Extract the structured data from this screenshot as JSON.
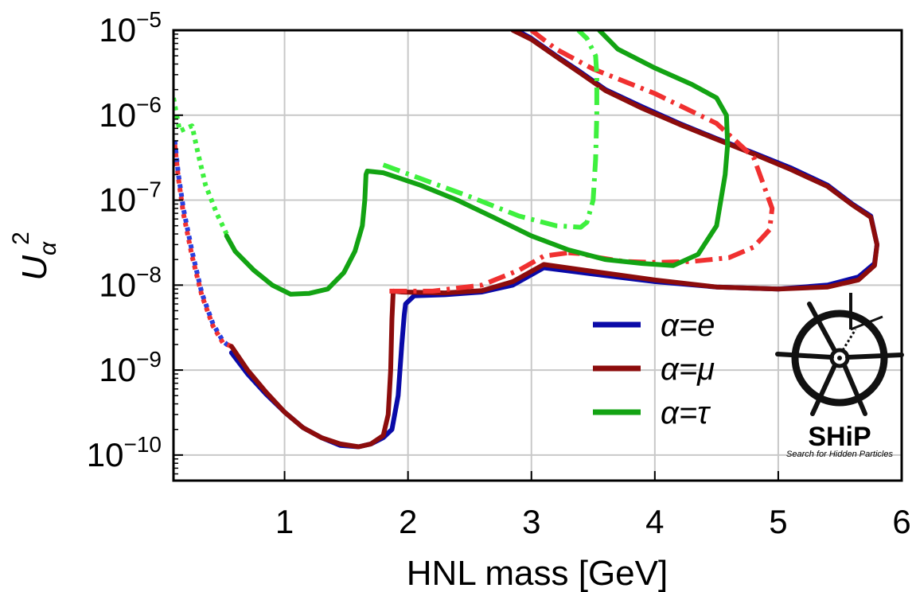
{
  "chart_data": {
    "type": "line",
    "xlabel": "HNL mass [GeV]",
    "ylabel": "U",
    "ylabel_sub": "α",
    "ylabel_sup": "2",
    "x_scale": "linear",
    "y_scale": "log",
    "xlim": [
      0.1,
      6.0
    ],
    "ylim": [
      5e-11,
      1e-05
    ],
    "x_ticks": [
      {
        "value": 1,
        "label": "1"
      },
      {
        "value": 2,
        "label": "2"
      },
      {
        "value": 3,
        "label": "3"
      },
      {
        "value": 4,
        "label": "4"
      },
      {
        "value": 5,
        "label": "5"
      },
      {
        "value": 6,
        "label": "6"
      }
    ],
    "y_ticks": [
      {
        "value": 1e-10,
        "base": "10",
        "exp": "−10"
      },
      {
        "value": 1e-09,
        "base": "10",
        "exp": "−9"
      },
      {
        "value": 1e-08,
        "base": "10",
        "exp": "−8"
      },
      {
        "value": 1e-07,
        "base": "10",
        "exp": "−7"
      },
      {
        "value": 1e-06,
        "base": "10",
        "exp": "−6"
      },
      {
        "value": 1e-05,
        "base": "10",
        "exp": "−5"
      }
    ],
    "grid": true,
    "legend_position": "bottom-right",
    "legend": [
      {
        "label": "α=e",
        "color": "#0a0aa8"
      },
      {
        "label": "α=μ",
        "color": "#8c0c0c"
      },
      {
        "label": "α=τ",
        "color": "#13a313"
      }
    ],
    "series": [
      {
        "key": "e_dotted",
        "color": "#2840e0",
        "style": "dotted",
        "x": [
          0.11,
          0.14,
          0.18,
          0.25,
          0.33,
          0.42,
          0.5,
          0.57
        ],
        "y": [
          5e-07,
          2e-07,
          8e-08,
          2.5e-08,
          8e-09,
          3.5e-09,
          2.2e-09,
          1.8e-09
        ]
      },
      {
        "key": "mu_dotted",
        "color": "#f03030",
        "style": "dotted",
        "x": [
          0.11,
          0.14,
          0.18,
          0.25,
          0.33,
          0.42,
          0.5,
          0.57
        ],
        "y": [
          4.5e-07,
          1.8e-07,
          7e-08,
          2.2e-08,
          7.5e-09,
          3.3e-09,
          2.1e-09,
          1.9e-09
        ]
      },
      {
        "key": "e_solid",
        "color": "#0a0aa8",
        "style": "solid",
        "x": [
          0.57,
          0.7,
          0.85,
          1.0,
          1.15,
          1.3,
          1.45,
          1.6,
          1.7,
          1.8,
          1.87,
          1.92,
          1.95,
          1.97,
          1.98,
          2.05,
          2.3,
          2.6,
          2.85,
          3.1,
          3.5,
          4.0,
          4.5,
          5.0,
          5.4,
          5.65,
          5.78,
          5.8
        ],
        "y": [
          1.6e-09,
          9e-10,
          5.2e-10,
          3.2e-10,
          2.1e-10,
          1.6e-10,
          1.3e-10,
          1.25e-10,
          1.35e-10,
          1.6e-10,
          2e-10,
          5e-10,
          2e-09,
          4.5e-09,
          6e-09,
          7.5e-09,
          7.7e-09,
          8.3e-09,
          1e-08,
          1.6e-08,
          1.35e-08,
          1.1e-08,
          9.5e-09,
          9e-09,
          1e-08,
          1.25e-08,
          1.8e-08,
          3e-08
        ]
      },
      {
        "key": "mu_solid",
        "color": "#8c0c0c",
        "style": "solid",
        "x": [
          0.57,
          0.7,
          0.85,
          1.0,
          1.15,
          1.3,
          1.45,
          1.6,
          1.7,
          1.8,
          1.84,
          1.86,
          1.87,
          1.88,
          1.95,
          2.3,
          2.6,
          2.85,
          3.1,
          3.5,
          4.0,
          4.5,
          5.0,
          5.4,
          5.65,
          5.78,
          5.8
        ],
        "y": [
          1.9e-09,
          1e-09,
          5.5e-10,
          3.2e-10,
          2.1e-10,
          1.6e-10,
          1.35e-10,
          1.25e-10,
          1.35e-10,
          1.7e-10,
          3e-10,
          1e-09,
          4e-09,
          8.5e-09,
          8.3e-09,
          8.1e-09,
          8.6e-09,
          1.1e-08,
          1.75e-08,
          1.45e-08,
          1.15e-08,
          9.5e-09,
          9e-09,
          9.5e-09,
          1.15e-08,
          1.7e-08,
          3e-08
        ]
      },
      {
        "key": "e_upper_solid",
        "color": "#0a0aa8",
        "style": "solid",
        "x": [
          5.8,
          5.75,
          5.6,
          5.4,
          5.1,
          4.8,
          4.5,
          4.2,
          3.9,
          3.6,
          3.4,
          3.2,
          3.0,
          2.88
        ],
        "y": [
          3e-08,
          6.5e-08,
          9e-08,
          1.5e-07,
          2.4e-07,
          3.6e-07,
          5.3e-07,
          8e-07,
          1.25e-06,
          2e-06,
          3.2e-06,
          5e-06,
          8e-06,
          1e-05
        ]
      },
      {
        "key": "mu_upper_solid",
        "color": "#8c0c0c",
        "style": "solid",
        "x": [
          5.8,
          5.75,
          5.6,
          5.4,
          5.1,
          4.8,
          4.5,
          4.2,
          3.9,
          3.6,
          3.4,
          3.2,
          3.0,
          2.85
        ],
        "y": [
          3e-08,
          6.3e-08,
          8.8e-08,
          1.45e-07,
          2.3e-07,
          3.5e-07,
          5.2e-07,
          7.8e-07,
          1.2e-06,
          1.95e-06,
          3.1e-06,
          4.9e-06,
          7.8e-06,
          1e-05
        ]
      },
      {
        "key": "mu_dashdot",
        "color": "#f03030",
        "style": "dashdot",
        "x": [
          3.0,
          3.2,
          3.5,
          4.0,
          4.5,
          4.8,
          4.95,
          4.93,
          4.8,
          4.6,
          4.3,
          4.0,
          3.75,
          3.55,
          3.4,
          3.3
        ],
        "y": [
          1e-05,
          6e-06,
          3.5e-06,
          1.8e-06,
          8e-07,
          3.2e-07,
          8e-08,
          4.5e-08,
          2.8e-08,
          2.1e-08,
          1.9e-08,
          1.85e-08,
          1.9e-08,
          2.1e-08,
          2.35e-08,
          2.4e-08
        ]
      },
      {
        "key": "mu_dashdot_low",
        "color": "#f03030",
        "style": "dashdot",
        "x": [
          1.85,
          2.2,
          2.6,
          2.9,
          3.1,
          3.3
        ],
        "y": [
          8.5e-09,
          8.5e-09,
          1e-08,
          1.5e-08,
          2.2e-08,
          2.4e-08
        ]
      },
      {
        "key": "tau_dotted",
        "color": "#3ef03e",
        "style": "dotted",
        "x": [
          0.1,
          0.15,
          0.25,
          0.3,
          0.36,
          0.45,
          0.53
        ],
        "y": [
          1.6e-06,
          6.5e-07,
          7.5e-07,
          3.5e-07,
          1.5e-07,
          7e-08,
          4e-08
        ]
      },
      {
        "key": "tau_solid",
        "color": "#13a313",
        "style": "solid",
        "x": [
          0.53,
          0.6,
          0.75,
          0.9,
          1.05,
          1.2,
          1.35,
          1.48,
          1.57,
          1.63,
          1.65,
          1.66,
          1.67,
          1.8,
          2.1,
          2.4,
          2.7,
          3.0,
          3.3,
          3.6,
          3.9,
          4.15,
          4.35,
          4.5,
          4.57,
          4.59,
          4.58,
          4.5,
          4.3,
          4.0,
          3.7,
          3.55
        ],
        "y": [
          3.8e-08,
          2.5e-08,
          1.5e-08,
          1e-08,
          7.8e-09,
          8e-09,
          9e-09,
          1.4e-08,
          2.5e-08,
          5e-08,
          1e-07,
          2e-07,
          2.2e-07,
          2.1e-07,
          1.5e-07,
          1e-07,
          6.2e-08,
          3.8e-08,
          2.6e-08,
          2e-08,
          1.8e-08,
          1.7e-08,
          2.3e-08,
          5e-08,
          2e-07,
          4.5e-07,
          1e-06,
          1.6e-06,
          2.3e-06,
          3.6e-06,
          6e-06,
          1e-05
        ]
      },
      {
        "key": "tau_dashdot",
        "color": "#3ef03e",
        "style": "dashdot",
        "x": [
          1.8,
          2.1,
          2.5,
          2.9,
          3.2,
          3.4,
          3.45,
          3.5,
          3.52,
          3.53,
          3.53,
          3.52,
          3.45,
          3.38
        ],
        "y": [
          2.6e-07,
          1.8e-07,
          1.1e-07,
          6.5e-08,
          5e-08,
          4.8e-08,
          5.5e-08,
          1e-07,
          3e-07,
          1e-06,
          3e-06,
          5e-06,
          8e-06,
          1e-05
        ]
      }
    ]
  },
  "logo": {
    "title": "SHiP",
    "subtitle": "Search for Hidden Particles"
  }
}
